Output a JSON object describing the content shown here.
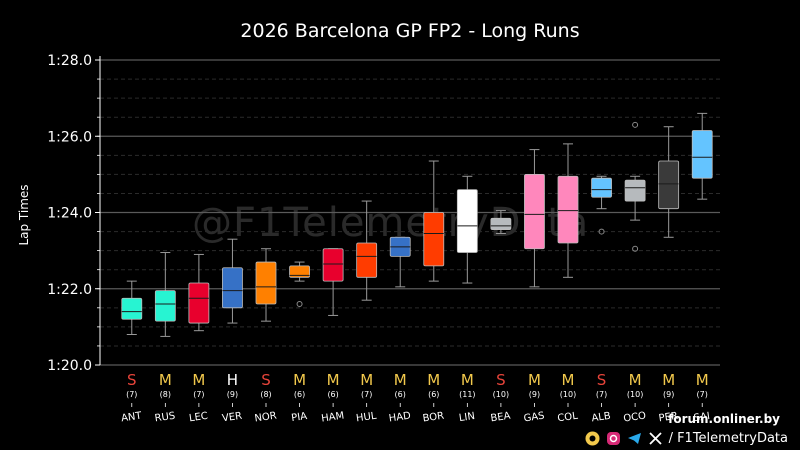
{
  "watermark": "@F1TelemetryData",
  "footer": {
    "site": "forum.onliner.by",
    "handle": "/ F1TelemetryData"
  },
  "colors": {
    "background": "#000000",
    "soft": "#e8443a",
    "medium": "#f2c94c",
    "hard": "#ffffff"
  },
  "chart_data": {
    "type": "box",
    "title": "2026 Barcelona GP FP2 - Long Runs",
    "ylabel": "Lap Times",
    "xlabel": "",
    "ylim": [
      80,
      88
    ],
    "yticks": [
      {
        "value": 80,
        "label": "1:20.0"
      },
      {
        "value": 82,
        "label": "1:22.0"
      },
      {
        "value": 84,
        "label": "1:24.0"
      },
      {
        "value": 86,
        "label": "1:26.0"
      },
      {
        "value": 88,
        "label": "1:28.0"
      }
    ],
    "grid": true,
    "drivers": [
      {
        "code": "ANT",
        "compound": "S",
        "laps": "(7)",
        "color": "#27f4d2",
        "whislo": 80.8,
        "q1": 81.2,
        "med": 81.4,
        "q3": 81.75,
        "whishi": 82.2,
        "fliers": []
      },
      {
        "code": "RUS",
        "compound": "M",
        "laps": "(8)",
        "color": "#27f4d2",
        "whislo": 80.75,
        "q1": 81.15,
        "med": 81.6,
        "q3": 81.95,
        "whishi": 82.95,
        "fliers": []
      },
      {
        "code": "LEC",
        "compound": "M",
        "laps": "(7)",
        "color": "#e8002d",
        "whislo": 80.9,
        "q1": 81.1,
        "med": 81.75,
        "q3": 82.15,
        "whishi": 82.9,
        "fliers": []
      },
      {
        "code": "VER",
        "compound": "H",
        "laps": "(9)",
        "color": "#3671c6",
        "whislo": 81.1,
        "q1": 81.5,
        "med": 81.95,
        "q3": 82.55,
        "whishi": 83.3,
        "fliers": []
      },
      {
        "code": "NOR",
        "compound": "S",
        "laps": "(8)",
        "color": "#ff8000",
        "whislo": 81.15,
        "q1": 81.6,
        "med": 82.05,
        "q3": 82.7,
        "whishi": 83.05,
        "fliers": []
      },
      {
        "code": "PIA",
        "compound": "M",
        "laps": "(6)",
        "color": "#ff8000",
        "whislo": 82.2,
        "q1": 82.3,
        "med": 82.35,
        "q3": 82.6,
        "whishi": 82.7,
        "fliers": [
          81.6
        ]
      },
      {
        "code": "HAM",
        "compound": "M",
        "laps": "(6)",
        "color": "#e8002d",
        "whislo": 81.3,
        "q1": 82.2,
        "med": 82.65,
        "q3": 83.05,
        "whishi": 83.05,
        "fliers": []
      },
      {
        "code": "HUL",
        "compound": "M",
        "laps": "(7)",
        "color": "#ff3c00",
        "whislo": 81.7,
        "q1": 82.3,
        "med": 82.85,
        "q3": 83.2,
        "whishi": 84.3,
        "fliers": []
      },
      {
        "code": "HAD",
        "compound": "M",
        "laps": "(6)",
        "color": "#3671c6",
        "whislo": 82.05,
        "q1": 82.85,
        "med": 83.1,
        "q3": 83.35,
        "whishi": 83.35,
        "fliers": []
      },
      {
        "code": "BOR",
        "compound": "M",
        "laps": "(6)",
        "color": "#ff3c00",
        "whislo": 82.2,
        "q1": 82.6,
        "med": 83.45,
        "q3": 84.0,
        "whishi": 85.35,
        "fliers": []
      },
      {
        "code": "LIN",
        "compound": "M",
        "laps": "(11)",
        "color": "#ffffff",
        "whislo": 82.15,
        "q1": 82.95,
        "med": 83.65,
        "q3": 84.6,
        "whishi": 84.95,
        "fliers": []
      },
      {
        "code": "BEA",
        "compound": "S",
        "laps": "(10)",
        "color": "#b6babd",
        "whislo": 83.45,
        "q1": 83.55,
        "med": 83.65,
        "q3": 83.85,
        "whishi": 84.05,
        "fliers": []
      },
      {
        "code": "GAS",
        "compound": "M",
        "laps": "(9)",
        "color": "#ff87bc",
        "whislo": 82.05,
        "q1": 83.05,
        "med": 83.95,
        "q3": 85.0,
        "whishi": 85.65,
        "fliers": []
      },
      {
        "code": "COL",
        "compound": "M",
        "laps": "(10)",
        "color": "#ff87bc",
        "whislo": 82.3,
        "q1": 83.2,
        "med": 84.05,
        "q3": 84.95,
        "whishi": 85.8,
        "fliers": []
      },
      {
        "code": "ALB",
        "compound": "S",
        "laps": "(7)",
        "color": "#64c4ff",
        "whislo": 84.1,
        "q1": 84.4,
        "med": 84.6,
        "q3": 84.9,
        "whishi": 84.95,
        "fliers": [
          83.5
        ]
      },
      {
        "code": "OCO",
        "compound": "M",
        "laps": "(10)",
        "color": "#b6babd",
        "whislo": 83.8,
        "q1": 84.3,
        "med": 84.65,
        "q3": 84.85,
        "whishi": 84.95,
        "fliers": [
          86.3,
          83.05
        ]
      },
      {
        "code": "PER",
        "compound": "M",
        "laps": "(9)",
        "color": "#3a3a3a",
        "whislo": 83.35,
        "q1": 84.1,
        "med": 84.75,
        "q3": 85.35,
        "whishi": 86.25,
        "fliers": []
      },
      {
        "code": "SAI",
        "compound": "M",
        "laps": "(7)",
        "color": "#64c4ff",
        "whislo": 84.35,
        "q1": 84.9,
        "med": 85.45,
        "q3": 86.15,
        "whishi": 86.6,
        "fliers": []
      }
    ]
  }
}
